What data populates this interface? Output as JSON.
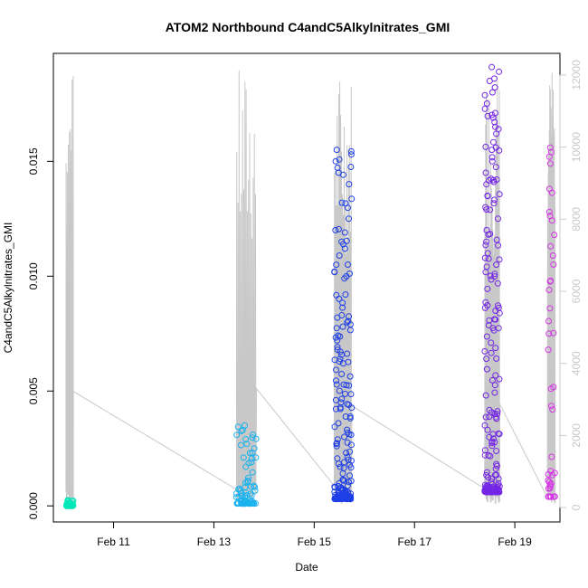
{
  "chart_data": {
    "type": "scatter",
    "title": "ATOM2 Northbound C4andC5Alkylnitrates_GMI",
    "xlabel": "Date",
    "ylabel": "C4andC5Alkylnitrates_GMI",
    "x_ticks": [
      "Feb 11",
      "Feb 13",
      "Feb 15",
      "Feb 17",
      "Feb 19"
    ],
    "x_tick_values": [
      11,
      13,
      15,
      17,
      19
    ],
    "xlim": [
      9.8,
      19.9
    ],
    "y_ticks": [
      "0.000",
      "0.005",
      "0.010",
      "0.015"
    ],
    "y_tick_values": [
      0.0,
      0.005,
      0.01,
      0.015
    ],
    "ylim": [
      -0.0007,
      0.0197
    ],
    "y2_ticks": [
      "0",
      "2000",
      "4000",
      "6000",
      "8000",
      "10000",
      "12000"
    ],
    "y2_tick_values": [
      0,
      2000,
      4000,
      6000,
      8000,
      10000,
      12000
    ],
    "y2lim": [
      -400,
      12600
    ],
    "altitude_color": "#c8c8c8",
    "clusters": [
      {
        "t0": 10.05,
        "t1": 10.2,
        "ymin": 0.0,
        "ymax": 0.0003,
        "n": 50,
        "color": "#00e6b8"
      },
      {
        "t0": 13.45,
        "t1": 13.85,
        "ymin": 0.0001,
        "ymax": 0.0035,
        "n": 70,
        "color": "#1ab2ee",
        "high": [
          0.0035,
          0.0033,
          0.0031,
          0.0029,
          0.0027,
          0.0025,
          0.0023,
          0.0021,
          0.0019,
          0.0017
        ]
      },
      {
        "t0": 15.4,
        "t1": 15.75,
        "ymin": 0.0003,
        "ymax": 0.0155,
        "n": 180,
        "color": "#1f3fe6",
        "high": [
          0.0155,
          0.0153,
          0.015,
          0.0125,
          0.012,
          0.0115,
          0.0105,
          0.0099,
          0.0092,
          0.0083,
          0.0079,
          0.0072,
          0.0068,
          0.0062
        ]
      },
      {
        "t0": 18.4,
        "t1": 18.7,
        "ymin": 0.0006,
        "ymax": 0.0191,
        "n": 170,
        "color": "#7326e6",
        "high": [
          0.0191,
          0.0189,
          0.0185,
          0.0171,
          0.0169,
          0.0165,
          0.0162,
          0.0155,
          0.015,
          0.0145,
          0.014,
          0.0135,
          0.013,
          0.0125,
          0.012,
          0.0115,
          0.011,
          0.0105,
          0.0101
        ]
      },
      {
        "t0": 19.65,
        "t1": 19.8,
        "ymin": 0.0004,
        "ymax": 0.0156,
        "n": 30,
        "color": "#d633e6",
        "high": [
          0.0156,
          0.0154,
          0.0152,
          0.0138,
          0.0128,
          0.0118,
          0.0113,
          0.0109,
          0.0098,
          0.0094,
          0.0086,
          0.0075,
          0.0068,
          0.0051,
          0.0042
        ]
      }
    ]
  }
}
